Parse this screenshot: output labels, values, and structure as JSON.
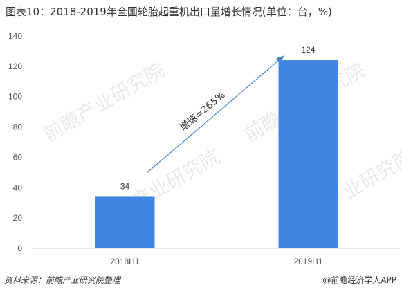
{
  "title": "图表10：2018-2019年全国轮胎起重机出口量增长情况(单位：台，%)",
  "source": "资料来源：前瞻产业研究院整理",
  "brand": "@前瞻经济学人APP",
  "watermark": "前瞻产业研究院",
  "colors": {
    "bar": "#3e86e2",
    "arrow": "#4a86c8"
  },
  "chart_data": {
    "type": "bar",
    "categories": [
      "2018H1",
      "2019H1"
    ],
    "values": [
      34,
      124
    ],
    "ylim": [
      0,
      140
    ],
    "yticks": [
      0,
      20,
      40,
      60,
      80,
      100,
      120,
      140
    ],
    "grid": false,
    "annotation": "增速=265%"
  }
}
